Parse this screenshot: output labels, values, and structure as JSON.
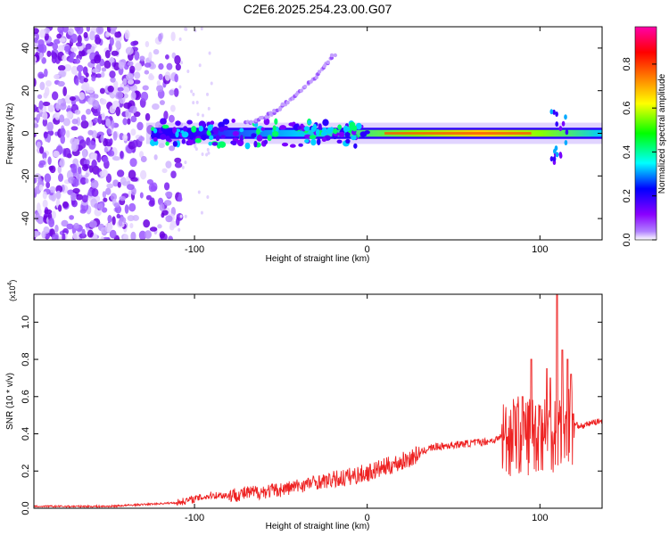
{
  "title": "C2E6.2025.254.23.00.G07",
  "chart_data": [
    {
      "type": "heatmap",
      "title": "C2E6.2025.254.23.00.G07",
      "xlabel": "Height of straight line (km)",
      "ylabel": "Frequency (Hz)",
      "xlim": [
        -193,
        136
      ],
      "ylim": [
        -50,
        50
      ],
      "x_ticks": [
        -100,
        0,
        100
      ],
      "y_ticks": [
        -40,
        -20,
        0,
        20,
        40
      ],
      "colorbar": {
        "label": "Normalized spectral amplitude",
        "range": [
          0.0,
          0.97
        ],
        "ticks": [
          0.0,
          0.2,
          0.4,
          0.6,
          0.8
        ],
        "colormap": [
          "#ffffff",
          "#8a00ff",
          "#0000ff",
          "#00ffff",
          "#00ff00",
          "#ffff00",
          "#ff8000",
          "#ff0000",
          "#ff00aa"
        ]
      },
      "features": [
        {
          "name": "central carrier band",
          "x_range": [
            -125,
            136
          ],
          "frequency_hz": 0
        },
        {
          "name": "upper branch",
          "x_range": [
            -70,
            -18
          ],
          "frequency_hz": [
            5,
            38
          ]
        },
        {
          "name": "noise region",
          "x_range": [
            -193,
            -110
          ],
          "frequency_hz": [
            -50,
            50
          ]
        }
      ]
    },
    {
      "type": "line",
      "xlabel": "Height of straight line (km)",
      "ylabel": "SNR (10 * v/v)",
      "y_multiplier_label": "(x10",
      "y_multiplier_exp": "4",
      "y_multiplier_close": ")",
      "xlim": [
        -193,
        136
      ],
      "ylim": [
        0.0,
        1.15
      ],
      "x_ticks": [
        -100,
        0,
        100
      ],
      "y_ticks": [
        0.0,
        0.2,
        0.4,
        0.6,
        0.8,
        1.0
      ],
      "y_tick_labels": [
        "0.0",
        "0.2",
        "0.4",
        "0.6",
        "0.8",
        "1.0"
      ],
      "color": "#ee2222",
      "series": [
        {
          "name": "SNR",
          "x": [
            -193,
            -170,
            -150,
            -130,
            -110,
            -100,
            -90,
            -80,
            -70,
            -60,
            -50,
            -40,
            -30,
            -20,
            -10,
            0,
            10,
            20,
            30,
            35,
            40,
            50,
            60,
            70,
            75,
            78,
            80,
            85,
            90,
            95,
            100,
            105,
            110,
            113,
            115,
            118,
            120,
            125,
            130,
            136
          ],
          "y": [
            0.01,
            0.01,
            0.01,
            0.02,
            0.03,
            0.05,
            0.07,
            0.07,
            0.08,
            0.09,
            0.1,
            0.12,
            0.14,
            0.15,
            0.17,
            0.19,
            0.22,
            0.25,
            0.29,
            0.32,
            0.33,
            0.34,
            0.35,
            0.36,
            0.37,
            0.39,
            0.38,
            0.4,
            0.39,
            0.4,
            0.41,
            0.4,
            0.42,
            0.44,
            0.44,
            0.44,
            0.45,
            0.44,
            0.46,
            0.47
          ],
          "spikes": [
            {
              "x": 85,
              "y": 0.55
            },
            {
              "x": 90,
              "y": 0.6
            },
            {
              "x": 95,
              "y": 0.8
            },
            {
              "x": 100,
              "y": 0.55
            },
            {
              "x": 104,
              "y": 0.75
            },
            {
              "x": 106,
              "y": 0.7
            },
            {
              "x": 110,
              "y": 1.15
            },
            {
              "x": 113,
              "y": 0.85
            },
            {
              "x": 116,
              "y": 0.8
            },
            {
              "x": 118,
              "y": 0.72
            }
          ]
        }
      ]
    }
  ]
}
